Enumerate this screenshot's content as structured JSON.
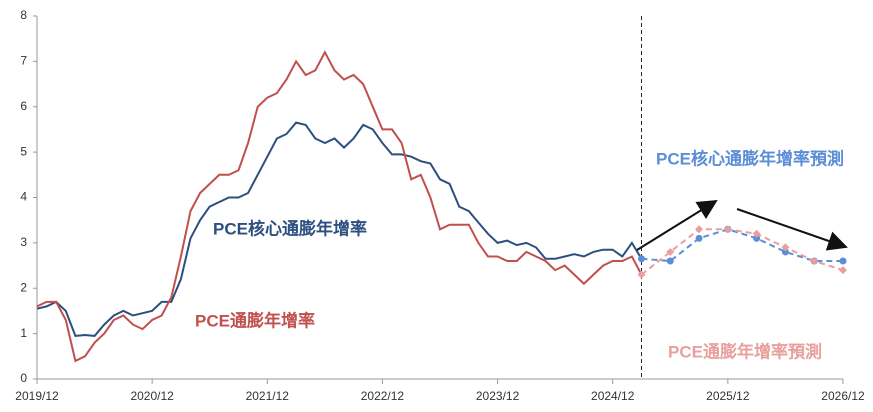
{
  "chart_data": {
    "type": "line",
    "xlim": [
      "2019/12",
      "2026/12"
    ],
    "xticks": [
      "2019/12",
      "2020/12",
      "2021/12",
      "2022/12",
      "2023/12",
      "2024/12",
      "2025/12",
      "2026/12"
    ],
    "ylim": [
      0,
      8
    ],
    "yticks": [
      0,
      1,
      2,
      3,
      4,
      5,
      6,
      7,
      8
    ],
    "grid": false,
    "divider": "2025/03",
    "series": [
      {
        "name": "PCE核心通膨年增率",
        "color": "#2d4f7f",
        "dashed": false,
        "x": [
          "2019/12",
          "2020/01",
          "2020/02",
          "2020/03",
          "2020/04",
          "2020/05",
          "2020/06",
          "2020/07",
          "2020/08",
          "2020/09",
          "2020/10",
          "2020/11",
          "2020/12",
          "2021/01",
          "2021/02",
          "2021/03",
          "2021/04",
          "2021/05",
          "2021/06",
          "2021/07",
          "2021/08",
          "2021/09",
          "2021/10",
          "2021/11",
          "2021/12",
          "2022/01",
          "2022/02",
          "2022/03",
          "2022/04",
          "2022/05",
          "2022/06",
          "2022/07",
          "2022/08",
          "2022/09",
          "2022/10",
          "2022/11",
          "2022/12",
          "2023/01",
          "2023/02",
          "2023/03",
          "2023/04",
          "2023/05",
          "2023/06",
          "2023/07",
          "2023/08",
          "2023/09",
          "2023/10",
          "2023/11",
          "2023/12",
          "2024/01",
          "2024/02",
          "2024/03",
          "2024/04",
          "2024/05",
          "2024/06",
          "2024/07",
          "2024/08",
          "2024/09",
          "2024/10",
          "2024/11",
          "2024/12",
          "2025/01",
          "2025/02",
          "2025/03"
        ],
        "values": [
          1.55,
          1.6,
          1.7,
          1.5,
          0.95,
          0.97,
          0.95,
          1.2,
          1.4,
          1.5,
          1.4,
          1.45,
          1.5,
          1.7,
          1.7,
          2.2,
          3.1,
          3.5,
          3.8,
          3.9,
          4.0,
          4.0,
          4.1,
          4.5,
          4.9,
          5.3,
          5.4,
          5.65,
          5.6,
          5.3,
          5.2,
          5.3,
          5.1,
          5.3,
          5.6,
          5.5,
          5.2,
          4.95,
          4.95,
          4.9,
          4.8,
          4.75,
          4.4,
          4.3,
          3.8,
          3.7,
          3.45,
          3.2,
          3.0,
          3.05,
          2.95,
          3.0,
          2.9,
          2.65,
          2.65,
          2.7,
          2.75,
          2.7,
          2.8,
          2.85,
          2.85,
          2.7,
          3.0,
          2.65
        ]
      },
      {
        "name": "PCE通膨年增率",
        "color": "#c0504d",
        "dashed": false,
        "x": [
          "2019/12",
          "2020/01",
          "2020/02",
          "2020/03",
          "2020/04",
          "2020/05",
          "2020/06",
          "2020/07",
          "2020/08",
          "2020/09",
          "2020/10",
          "2020/11",
          "2020/12",
          "2021/01",
          "2021/02",
          "2021/03",
          "2021/04",
          "2021/05",
          "2021/06",
          "2021/07",
          "2021/08",
          "2021/09",
          "2021/10",
          "2021/11",
          "2021/12",
          "2022/01",
          "2022/02",
          "2022/03",
          "2022/04",
          "2022/05",
          "2022/06",
          "2022/07",
          "2022/08",
          "2022/09",
          "2022/10",
          "2022/11",
          "2022/12",
          "2023/01",
          "2023/02",
          "2023/03",
          "2023/04",
          "2023/05",
          "2023/06",
          "2023/07",
          "2023/08",
          "2023/09",
          "2023/10",
          "2023/11",
          "2023/12",
          "2024/01",
          "2024/02",
          "2024/03",
          "2024/04",
          "2024/05",
          "2024/06",
          "2024/07",
          "2024/08",
          "2024/09",
          "2024/10",
          "2024/11",
          "2024/12",
          "2025/01",
          "2025/02",
          "2025/03"
        ],
        "values": [
          1.6,
          1.7,
          1.7,
          1.3,
          0.4,
          0.5,
          0.8,
          1.0,
          1.3,
          1.4,
          1.2,
          1.1,
          1.3,
          1.4,
          1.8,
          2.7,
          3.7,
          4.1,
          4.3,
          4.5,
          4.5,
          4.6,
          5.2,
          6.0,
          6.2,
          6.3,
          6.6,
          7.0,
          6.7,
          6.8,
          7.2,
          6.8,
          6.6,
          6.7,
          6.5,
          6.0,
          5.5,
          5.5,
          5.2,
          4.4,
          4.5,
          4.0,
          3.3,
          3.4,
          3.4,
          3.4,
          3.0,
          2.7,
          2.7,
          2.6,
          2.6,
          2.8,
          2.7,
          2.6,
          2.4,
          2.5,
          2.3,
          2.1,
          2.3,
          2.5,
          2.6,
          2.6,
          2.7,
          2.3
        ]
      },
      {
        "name": "PCE核心通膨年增率預測",
        "color": "#5b8ed6",
        "dashed": true,
        "marker": "circle",
        "x": [
          "2025/03",
          "2025/06",
          "2025/09",
          "2025/12",
          "2026/03",
          "2026/06",
          "2026/09",
          "2026/12"
        ],
        "values": [
          2.65,
          2.6,
          3.1,
          3.3,
          3.1,
          2.8,
          2.6,
          2.6
        ]
      },
      {
        "name": "PCE通膨年增率預測",
        "color": "#e8a09c",
        "dashed": true,
        "marker": "diamond",
        "x": [
          "2025/03",
          "2025/06",
          "2025/09",
          "2025/12",
          "2026/03",
          "2026/06",
          "2026/09",
          "2026/12"
        ],
        "values": [
          2.3,
          2.8,
          3.3,
          3.3,
          3.2,
          2.9,
          2.6,
          2.4
        ]
      }
    ]
  }
}
